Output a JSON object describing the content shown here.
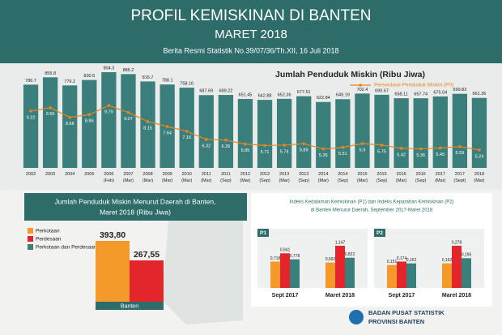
{
  "header": {
    "title": "PROFIL KEMISKINAN DI BANTEN",
    "subtitle": "MARET 2018",
    "source": "Berita Resmi Statistik No.39/07/36/Th.XII, 16 Juli 2018"
  },
  "chart_data": [
    {
      "type": "bar-line",
      "categories": [
        [
          "2002"
        ],
        [
          "2003"
        ],
        [
          "2004"
        ],
        [
          "2005"
        ],
        [
          "2006",
          "(Feb)"
        ],
        [
          "2007",
          "(Mar)"
        ],
        [
          "2008",
          "(Mar)"
        ],
        [
          "2009",
          "(Mar)"
        ],
        [
          "2010",
          "(Mar)"
        ],
        [
          "2011",
          "(Mar)"
        ],
        [
          "2011",
          "(Sep)"
        ],
        [
          "2012",
          "(Mar)"
        ],
        [
          "2012",
          "(Sep)"
        ],
        [
          "2013",
          "(Mar)"
        ],
        [
          "2013",
          "(Sep)"
        ],
        [
          "2014",
          "(Mar)"
        ],
        [
          "2014",
          "(Sep)"
        ],
        [
          "2015",
          "(Mar)"
        ],
        [
          "2015",
          "(Sep)"
        ],
        [
          "2016",
          "(Mar)"
        ],
        [
          "2016",
          "(Sep)"
        ],
        [
          "2017",
          "(Mar)"
        ],
        [
          "2017",
          "(Sept)"
        ],
        [
          "2018",
          "(Mar)"
        ]
      ],
      "series": [
        {
          "name": "Jumlah Penduduk Miskin (Ribu Jiwa)",
          "color": "#3a7f7b",
          "values": [
            786.7,
            855.8,
            779.2,
            830.5,
            904.3,
            886.2,
            816.7,
            788.1,
            758.16,
            687.69,
            689.22,
            651.45,
            642.88,
            652.36,
            677.51,
            622.84,
            649.19,
            702.4,
            690.67,
            658.11,
            657.74,
            675.04,
            699.83,
            661.36
          ]
        },
        {
          "name": "Persentase Penduduk Miskin (P0)",
          "color": "#e8861e",
          "values": [
            9.22,
            9.56,
            8.58,
            8.86,
            9.79,
            9.07,
            8.15,
            7.64,
            7.16,
            6.32,
            6.26,
            5.85,
            5.71,
            5.74,
            5.89,
            5.35,
            5.51,
            5.9,
            5.75,
            5.42,
            5.36,
            5.45,
            5.59,
            5.24
          ]
        }
      ]
    },
    {
      "type": "bar",
      "title": [
        "Jumlah Penduduk Miskin Menurut Daerah di Banten,",
        "Maret 2018 (Ribu Jiwa)"
      ],
      "categories": [
        "Banten"
      ],
      "series": [
        {
          "name": "Perkotaan",
          "color": "#f39a2b",
          "values": [
            393.8
          ],
          "value_labels": [
            "393,80"
          ]
        },
        {
          "name": "Perdesaan",
          "color": "#e2262b",
          "values": [
            267.55
          ],
          "value_labels": [
            "267,55"
          ]
        },
        {
          "name": "Perkotaan dan Perdesaan",
          "color": "#3a7f7b",
          "values": [
            null
          ]
        }
      ]
    },
    {
      "type": "bar",
      "title": [
        "Indeks Kedalaman Kemiskinan (P1) dan Indeks Keparahan Kemiskinan (P2)",
        "di Banten Menurut Daerah, September 2017-Maret 2018"
      ],
      "label": "P1",
      "categories": [
        "Sept 2017",
        "Maret 2018"
      ],
      "series": [
        {
          "color": "#f39a2b",
          "values": [
            0.718,
            0.692
          ],
          "value_labels": [
            "0,718",
            "0,692"
          ]
        },
        {
          "color": "#e2262b",
          "values": [
            0.941,
            1.147
          ],
          "value_labels": [
            "0,941",
            "1,147"
          ]
        },
        {
          "color": "#3a7f7b",
          "values": [
            0.778,
            0.822
          ],
          "value_labels": [
            "0,778",
            "0,822"
          ]
        }
      ]
    },
    {
      "type": "bar",
      "label": "P2",
      "categories": [
        "Sept 2017",
        "Maret 2018"
      ],
      "series": [
        {
          "color": "#f39a2b",
          "values": [
            0.151,
            0.162
          ],
          "value_labels": [
            "0,151",
            "0,162"
          ]
        },
        {
          "color": "#e2262b",
          "values": [
            0.174,
            0.278
          ],
          "value_labels": [
            "0,174",
            "0,278"
          ]
        },
        {
          "color": "#3a7f7b",
          "values": [
            0.162,
            0.196
          ],
          "value_labels": [
            "0,162",
            "0,196"
          ]
        }
      ]
    }
  ],
  "footer": {
    "org": "BADAN PUSAT STATISTIK",
    "region": "PROVINSI BANTEN"
  }
}
